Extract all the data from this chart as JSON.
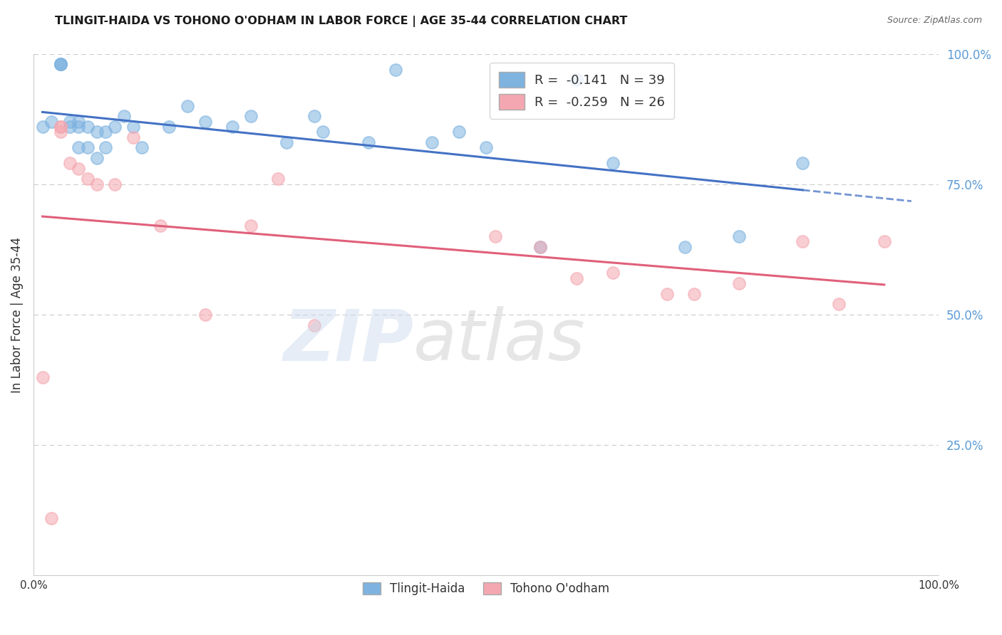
{
  "title": "TLINGIT-HAIDA VS TOHONO O'ODHAM IN LABOR FORCE | AGE 35-44 CORRELATION CHART",
  "source": "Source: ZipAtlas.com",
  "ylabel": "In Labor Force | Age 35-44",
  "xlim": [
    0.0,
    1.0
  ],
  "ylim": [
    0.0,
    1.0
  ],
  "legend_R1": "-0.141",
  "legend_N1": "39",
  "legend_R2": "-0.259",
  "legend_N2": "26",
  "blue_color": "#7EB3E0",
  "pink_color": "#F4A7B0",
  "line_blue": "#4472C4",
  "line_pink": "#E0607A",
  "tlingit_x": [
    0.01,
    0.02,
    0.03,
    0.03,
    0.03,
    0.04,
    0.04,
    0.05,
    0.05,
    0.05,
    0.06,
    0.06,
    0.07,
    0.07,
    0.08,
    0.08,
    0.09,
    0.1,
    0.11,
    0.12,
    0.15,
    0.17,
    0.19,
    0.22,
    0.24,
    0.28,
    0.31,
    0.32,
    0.37,
    0.4,
    0.44,
    0.47,
    0.5,
    0.56,
    0.6,
    0.64,
    0.72,
    0.78,
    0.85
  ],
  "tlingit_y": [
    0.86,
    0.87,
    0.98,
    0.98,
    0.98,
    0.86,
    0.87,
    0.82,
    0.86,
    0.87,
    0.82,
    0.86,
    0.8,
    0.85,
    0.82,
    0.85,
    0.86,
    0.88,
    0.86,
    0.82,
    0.86,
    0.9,
    0.87,
    0.86,
    0.88,
    0.83,
    0.88,
    0.85,
    0.83,
    0.97,
    0.83,
    0.85,
    0.82,
    0.63,
    0.95,
    0.79,
    0.63,
    0.65,
    0.79
  ],
  "tohono_x": [
    0.01,
    0.02,
    0.03,
    0.03,
    0.03,
    0.04,
    0.05,
    0.06,
    0.07,
    0.09,
    0.11,
    0.14,
    0.19,
    0.24,
    0.27,
    0.31,
    0.51,
    0.56,
    0.6,
    0.64,
    0.7,
    0.73,
    0.78,
    0.85,
    0.89,
    0.94
  ],
  "tohono_y": [
    0.38,
    0.11,
    0.85,
    0.86,
    0.86,
    0.79,
    0.78,
    0.76,
    0.75,
    0.75,
    0.84,
    0.67,
    0.5,
    0.67,
    0.76,
    0.48,
    0.65,
    0.63,
    0.57,
    0.58,
    0.54,
    0.54,
    0.56,
    0.64,
    0.52,
    0.64
  ],
  "grid_color": "#CCCCCC",
  "axis_color": "#CCCCCC",
  "right_tick_color": "#5B9BD5",
  "text_color": "#333333"
}
